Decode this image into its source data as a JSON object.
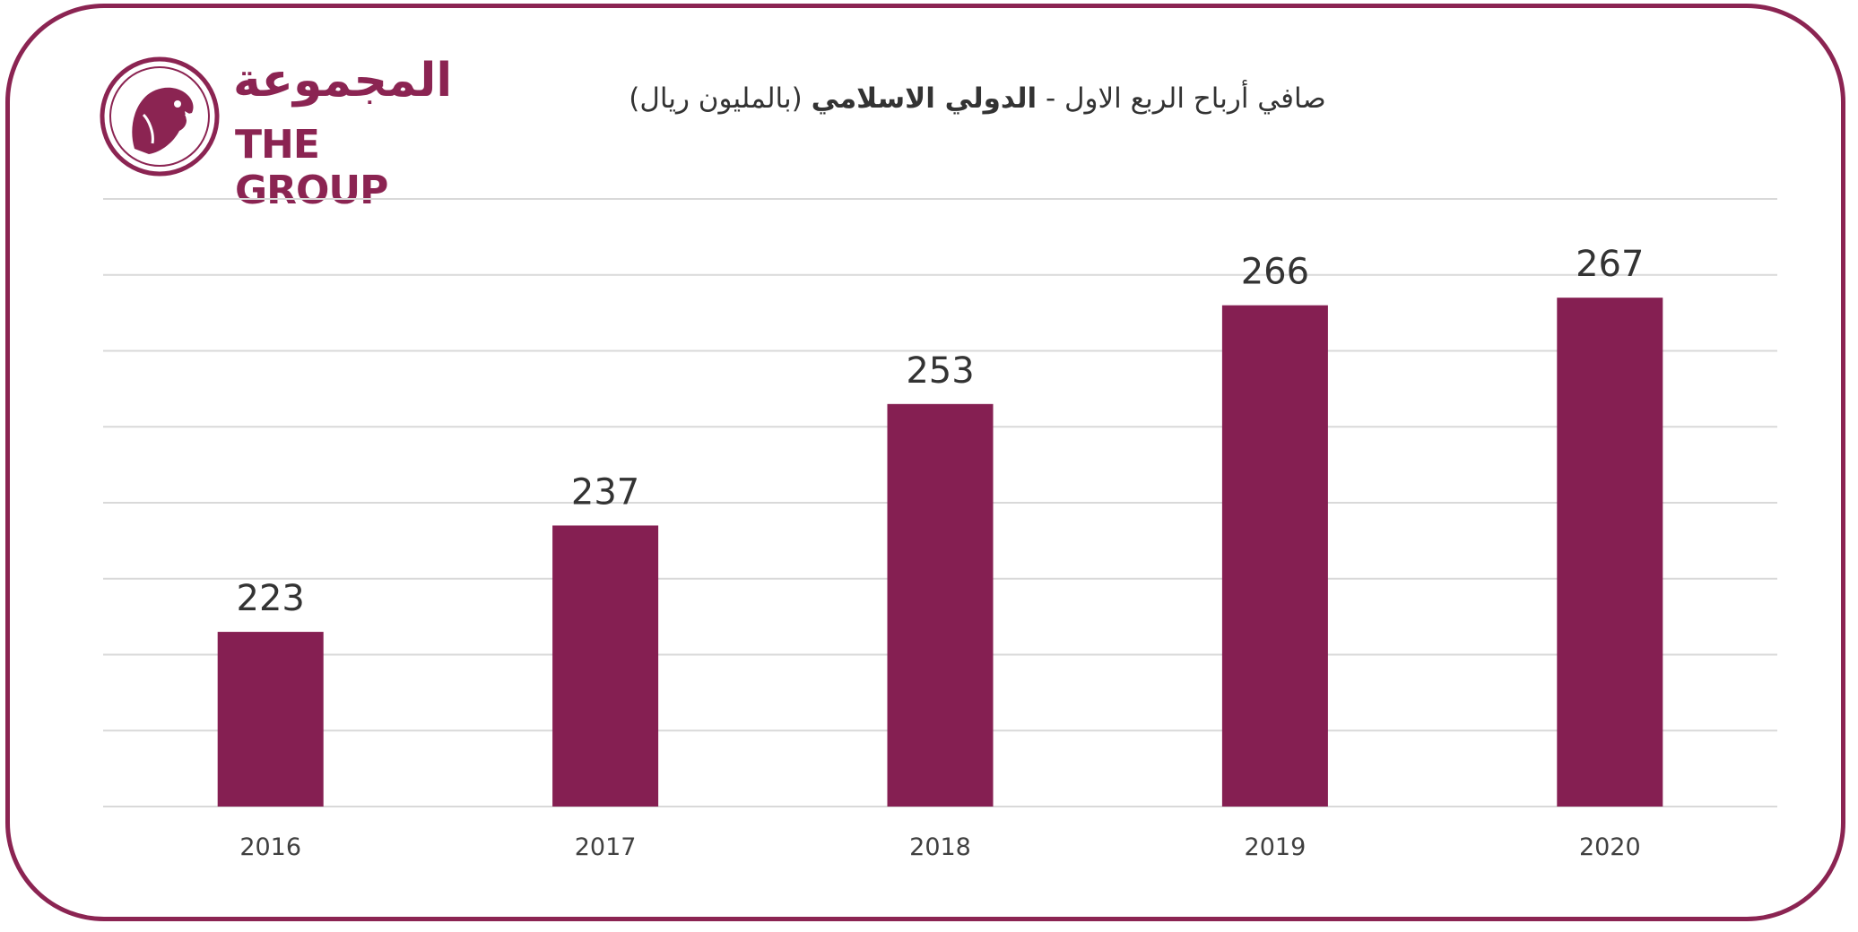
{
  "logo": {
    "arabic": "المجموعة",
    "english": "THE GROUP"
  },
  "colors": {
    "brand": "#8b2452",
    "bar": "#851f52",
    "grid": "#d9d9d9",
    "text": "#333333"
  },
  "title": {
    "part1": "صافي أرباح الربع الاول - ",
    "part2_bold": "الدولي الاسلامي",
    "part3": " (بالمليون ريال)"
  },
  "chart_data": {
    "type": "bar",
    "categories": [
      "2016",
      "2017",
      "2018",
      "2019",
      "2020"
    ],
    "values": [
      223,
      237,
      253,
      266,
      267
    ],
    "title": "صافي أرباح الربع الاول - الدولي الاسلامي (بالمليون ريال)",
    "xlabel": "",
    "ylabel": "",
    "ylim": [
      200,
      280
    ],
    "grid": true,
    "data_labels": true
  }
}
